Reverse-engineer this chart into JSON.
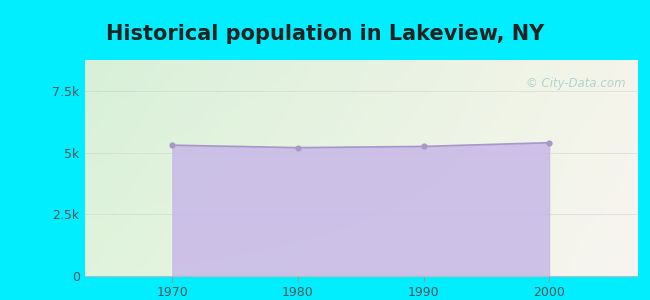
{
  "title": "Historical population in Lakeview, NY",
  "years": [
    1970,
    1980,
    1990,
    2000
  ],
  "population": [
    5300,
    5200,
    5250,
    5400
  ],
  "ylim": [
    0,
    8750
  ],
  "yticks": [
    0,
    2500,
    5000,
    7500
  ],
  "ytick_labels": [
    "0",
    "2.5k",
    "5k",
    "7.5k"
  ],
  "fill_color": "#c8b8e8",
  "line_color": "#a898c8",
  "marker_color": "#a898c8",
  "bg_outer": "#00eeff",
  "bg_plot_topleft": "#d8f0d8",
  "bg_plot_topright": "#f0f0e8",
  "bg_plot_bottomleft": "#e8f4e0",
  "bg_plot_bottomright": "#f8f4f0",
  "title_fontsize": 15,
  "title_color": "#222222",
  "tick_color": "#555555",
  "watermark": "© City-Data.com",
  "watermark_color": "#aacccc"
}
